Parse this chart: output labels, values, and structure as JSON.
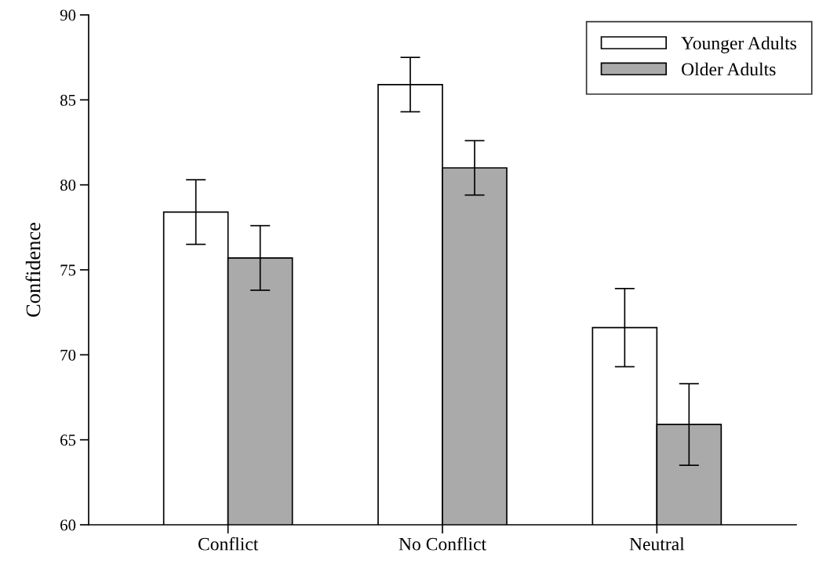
{
  "chart_data": {
    "type": "bar",
    "ylabel": "Confidence",
    "categories": [
      "Conflict",
      "No Conflict",
      "Neutral"
    ],
    "series": [
      {
        "name": "Younger Adults",
        "color": "#ffffff",
        "values": [
          78.4,
          85.9,
          71.6
        ],
        "errors": [
          1.9,
          1.6,
          2.3
        ]
      },
      {
        "name": "Older Adults",
        "color": "#aaaaaa",
        "values": [
          75.7,
          81.0,
          65.9
        ],
        "errors": [
          1.9,
          1.6,
          2.4
        ]
      }
    ],
    "ylim": [
      60,
      90
    ],
    "yticks": [
      60,
      65,
      70,
      75,
      80,
      85,
      90
    ],
    "grid": false,
    "legend": "top right"
  }
}
